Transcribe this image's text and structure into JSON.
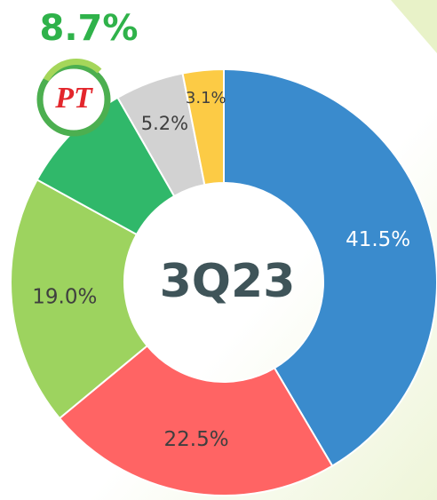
{
  "chart_data": {
    "type": "donut",
    "center_label": "3Q23",
    "logo_text": "PT",
    "categories": [
      null,
      null,
      null,
      null,
      null,
      null
    ],
    "values": [
      41.5,
      22.5,
      19.0,
      8.7,
      5.2,
      3.1
    ],
    "value_labels": [
      "41.5%",
      "22.5%",
      "19.0%",
      "8.7%",
      "5.2%",
      "3.1%"
    ],
    "colors": [
      "#3a8bcd",
      "#ff6464",
      "#9dd35f",
      "#30b86a",
      "#d2d2d2",
      "#fccb45"
    ]
  }
}
